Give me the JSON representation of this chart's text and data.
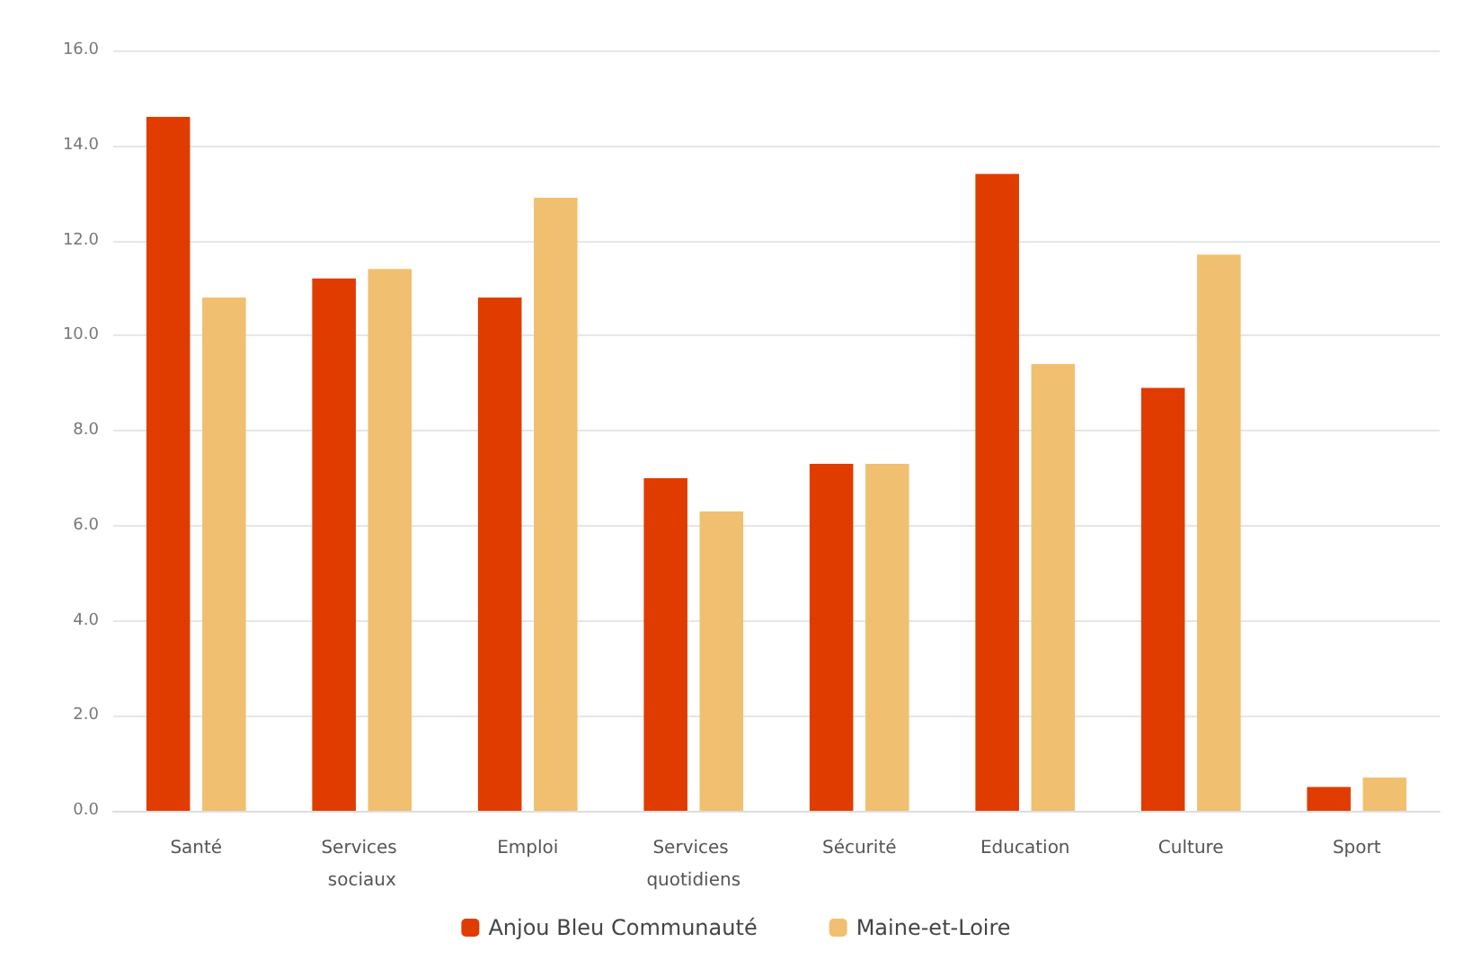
{
  "chart_data": {
    "type": "bar",
    "categories": [
      "Santé",
      "Services sociaux",
      "Emploi",
      "Services quotidiens",
      "Sécurité",
      "Education",
      "Culture",
      "Sport"
    ],
    "series": [
      {
        "name": "Anjou Bleu Communauté",
        "color": "#e03c00",
        "values": [
          14.6,
          11.2,
          10.8,
          7.0,
          7.3,
          13.4,
          8.9,
          0.5
        ]
      },
      {
        "name": "Maine-et-Loire",
        "color": "#f0c070",
        "values": [
          10.8,
          11.4,
          12.9,
          6.3,
          7.3,
          9.4,
          11.7,
          0.7
        ]
      }
    ],
    "ylim": [
      0,
      16
    ],
    "yticks": [
      {
        "value": 0,
        "label": "0.0"
      },
      {
        "value": 2,
        "label": "2.0"
      },
      {
        "value": 4,
        "label": "4.0"
      },
      {
        "value": 6,
        "label": "6.0"
      },
      {
        "value": 8,
        "label": "8.0"
      },
      {
        "value": 10,
        "label": "10.0"
      },
      {
        "value": 12,
        "label": "12.0"
      },
      {
        "value": 14,
        "label": "14.0"
      },
      {
        "value": 16,
        "label": "16.0"
      }
    ],
    "grid": "y",
    "legend": "bottom"
  }
}
